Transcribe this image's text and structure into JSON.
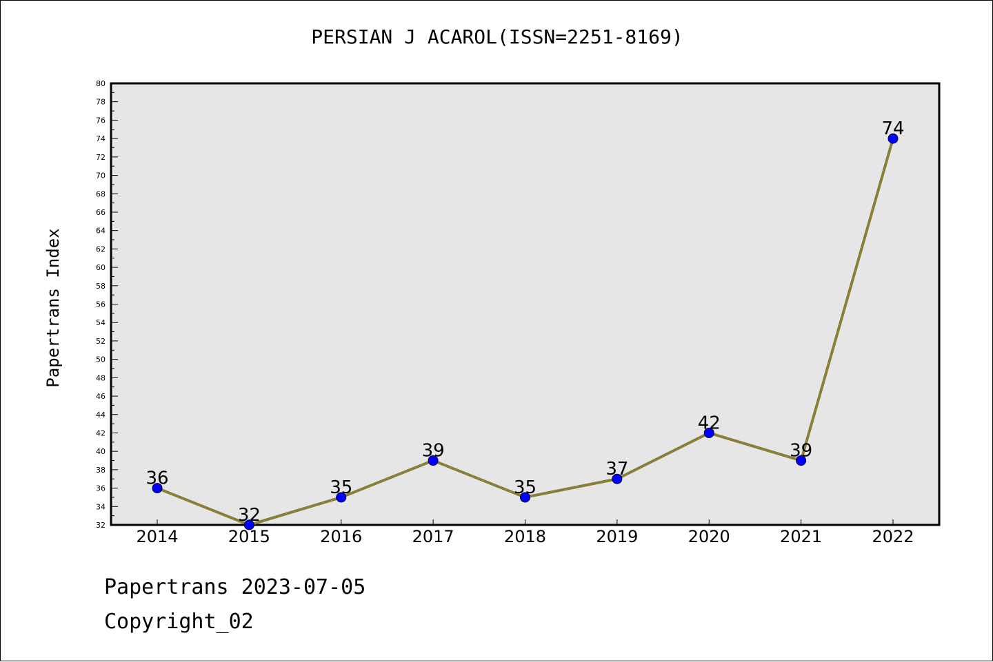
{
  "chart_data": {
    "type": "line",
    "title": "PERSIAN J ACAROL(ISSN=2251-8169)",
    "xlabel": "",
    "ylabel": "Papertrans Index",
    "categories": [
      "2014",
      "2015",
      "2016",
      "2017",
      "2018",
      "2019",
      "2020",
      "2021",
      "2022"
    ],
    "series": [
      {
        "values": [
          36,
          32,
          35,
          39,
          35,
          37,
          42,
          39,
          74
        ]
      }
    ],
    "data_labels": [
      "36",
      "32",
      "35",
      "39",
      "35",
      "37",
      "42",
      "39",
      "74"
    ],
    "ylim": [
      32,
      80
    ],
    "y_ticks": [
      "32",
      "34",
      "36",
      "38",
      "40",
      "42",
      "44",
      "46",
      "48",
      "50",
      "52",
      "54",
      "56",
      "58",
      "60",
      "62",
      "64",
      "66",
      "68",
      "70",
      "72",
      "74",
      "76",
      "78",
      "80"
    ],
    "grid": false,
    "legend": "none",
    "colors": {
      "line": "#8b7d3a",
      "marker": "#0000ff",
      "plot_background": "#e6e6e6"
    }
  },
  "footer": {
    "line1": "Papertrans 2023-07-05",
    "line2": "Copyright_02"
  }
}
